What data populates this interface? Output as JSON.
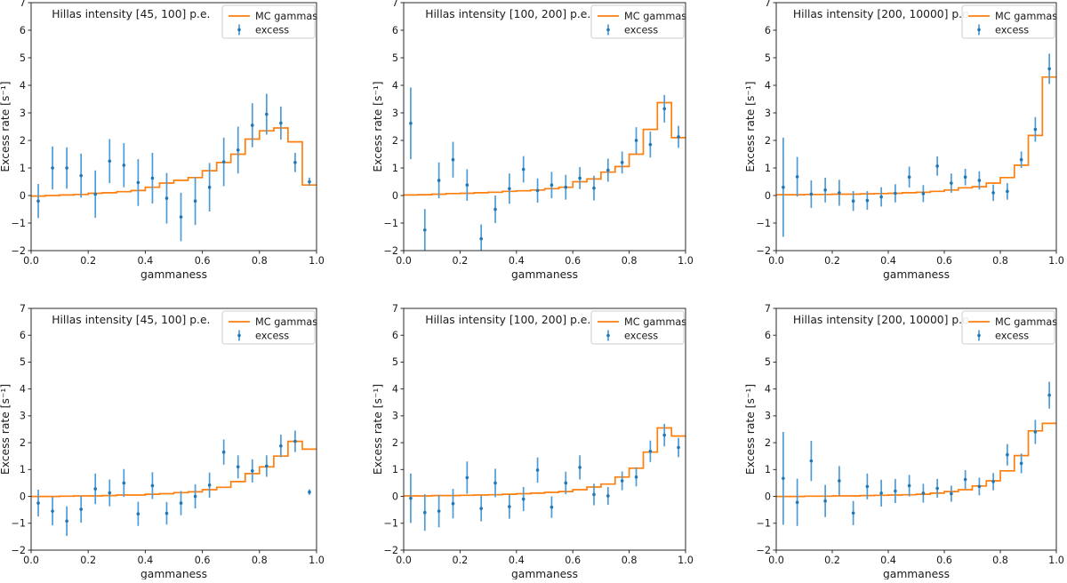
{
  "figure": {
    "background": "#ffffff",
    "xlabel": "gammaness",
    "ylabel": "Excess rate [s⁻¹]",
    "xlim": [
      0.0,
      1.0
    ],
    "ylim": [
      -2,
      7
    ],
    "xticks": [
      0.0,
      0.2,
      0.4,
      0.6,
      0.8,
      1.0
    ],
    "yticks": [
      -2,
      -1,
      0,
      1,
      2,
      3,
      4,
      5,
      6,
      7
    ],
    "legend": {
      "mc_label": "MC gammas",
      "excess_label": "excess",
      "position": "upper right"
    },
    "colors": {
      "mc_line": "#ff7f0e",
      "excess_marker": "#1f77b4",
      "excess_bar": "#4f9bd5",
      "axis": "#2b2b2b",
      "legend_border": "#cccccc"
    },
    "grid": "off"
  },
  "chart_data": [
    {
      "type": "line",
      "subtype": "step-histogram+errorbar-scatter",
      "row": 0,
      "col": 0,
      "title": "Hillas intensity [45, 100] p.e.",
      "xlabel": "gammaness",
      "ylabel": "Excess rate [s⁻¹]",
      "xlim": [
        0.0,
        1.0
      ],
      "ylim": [
        -2,
        7
      ],
      "bin_width": 0.05,
      "x": [
        0.025,
        0.075,
        0.125,
        0.175,
        0.225,
        0.275,
        0.325,
        0.375,
        0.425,
        0.475,
        0.525,
        0.575,
        0.625,
        0.675,
        0.725,
        0.775,
        0.825,
        0.875,
        0.925,
        0.975
      ],
      "series": [
        {
          "name": "MC gammas",
          "style": "step",
          "values": [
            -0.02,
            0.0,
            0.02,
            0.04,
            0.08,
            0.1,
            0.14,
            0.18,
            0.3,
            0.45,
            0.55,
            0.65,
            0.9,
            1.2,
            1.5,
            2.05,
            2.35,
            2.45,
            1.95,
            0.38
          ]
        },
        {
          "name": "excess",
          "style": "errorbar",
          "y": [
            -0.2,
            1.0,
            1.0,
            0.72,
            0.05,
            1.25,
            1.1,
            0.47,
            0.63,
            -0.1,
            -0.78,
            -0.2,
            0.3,
            1.22,
            1.65,
            2.55,
            2.95,
            2.63,
            1.2,
            0.5
          ],
          "yerr": [
            0.62,
            0.78,
            0.75,
            0.8,
            0.86,
            0.8,
            0.8,
            0.85,
            0.92,
            0.92,
            0.88,
            0.87,
            0.88,
            0.88,
            0.85,
            0.8,
            0.74,
            0.6,
            0.35,
            0.15
          ]
        }
      ]
    },
    {
      "type": "line",
      "subtype": "step-histogram+errorbar-scatter",
      "row": 0,
      "col": 1,
      "title": "Hillas intensity [100, 200] p.e.",
      "xlabel": "gammaness",
      "ylabel": "Excess rate [s⁻¹]",
      "xlim": [
        0.0,
        1.0
      ],
      "ylim": [
        -2,
        7
      ],
      "bin_width": 0.05,
      "x": [
        0.025,
        0.075,
        0.125,
        0.175,
        0.225,
        0.275,
        0.325,
        0.375,
        0.425,
        0.475,
        0.525,
        0.575,
        0.625,
        0.675,
        0.725,
        0.775,
        0.825,
        0.875,
        0.925,
        0.975
      ],
      "series": [
        {
          "name": "MC gammas",
          "style": "step",
          "values": [
            0.02,
            0.03,
            0.05,
            0.07,
            0.08,
            0.1,
            0.12,
            0.15,
            0.17,
            0.2,
            0.25,
            0.3,
            0.5,
            0.6,
            0.85,
            1.05,
            1.5,
            2.4,
            3.37,
            2.1
          ]
        },
        {
          "name": "excess",
          "style": "errorbar",
          "y": [
            2.62,
            -1.25,
            0.55,
            1.3,
            0.38,
            -1.57,
            -0.5,
            0.25,
            0.95,
            0.18,
            0.38,
            0.3,
            0.63,
            0.27,
            0.92,
            1.2,
            2.0,
            1.85,
            3.15,
            2.13
          ],
          "yerr": [
            1.3,
            0.76,
            0.65,
            0.65,
            0.57,
            0.52,
            0.5,
            0.55,
            0.48,
            0.44,
            0.48,
            0.45,
            0.4,
            0.45,
            0.42,
            0.4,
            0.48,
            0.47,
            0.5,
            0.4
          ]
        }
      ]
    },
    {
      "type": "line",
      "subtype": "step-histogram+errorbar-scatter",
      "row": 0,
      "col": 2,
      "title": "Hillas intensity [200, 10000] p.e.",
      "xlabel": "gammaness",
      "ylabel": "Excess rate [s⁻¹]",
      "xlim": [
        0.0,
        1.0
      ],
      "ylim": [
        -2,
        7
      ],
      "bin_width": 0.05,
      "x": [
        0.025,
        0.075,
        0.125,
        0.175,
        0.225,
        0.275,
        0.325,
        0.375,
        0.425,
        0.475,
        0.525,
        0.575,
        0.625,
        0.675,
        0.725,
        0.775,
        0.825,
        0.875,
        0.925,
        0.975
      ],
      "series": [
        {
          "name": "MC gammas",
          "style": "step",
          "values": [
            0.03,
            0.03,
            0.04,
            0.04,
            0.05,
            0.05,
            0.06,
            0.07,
            0.08,
            0.1,
            0.12,
            0.15,
            0.2,
            0.28,
            0.32,
            0.45,
            0.65,
            1.1,
            2.18,
            4.3
          ]
        },
        {
          "name": "excess",
          "style": "errorbar",
          "y": [
            0.3,
            0.68,
            0.05,
            0.2,
            0.1,
            -0.2,
            -0.18,
            -0.05,
            0.08,
            0.67,
            0.07,
            1.07,
            0.45,
            0.67,
            0.55,
            0.1,
            0.15,
            1.3,
            2.4,
            4.6
          ],
          "yerr": [
            1.8,
            0.72,
            0.5,
            0.45,
            0.47,
            0.36,
            0.34,
            0.35,
            0.33,
            0.38,
            0.31,
            0.35,
            0.35,
            0.3,
            0.33,
            0.3,
            0.3,
            0.3,
            0.45,
            0.55
          ]
        }
      ]
    },
    {
      "type": "line",
      "subtype": "step-histogram+errorbar-scatter",
      "row": 1,
      "col": 0,
      "title": "Hillas intensity [45, 100] p.e.",
      "xlabel": "gammaness",
      "ylabel": "Excess rate [s⁻¹]",
      "xlim": [
        0.0,
        1.0
      ],
      "ylim": [
        -2,
        7
      ],
      "bin_width": 0.05,
      "x": [
        0.025,
        0.075,
        0.125,
        0.175,
        0.225,
        0.275,
        0.325,
        0.375,
        0.425,
        0.475,
        0.525,
        0.575,
        0.625,
        0.675,
        0.725,
        0.775,
        0.825,
        0.875,
        0.925,
        0.975
      ],
      "series": [
        {
          "name": "MC gammas",
          "style": "step",
          "values": [
            0.0,
            0.0,
            0.01,
            0.02,
            0.02,
            0.03,
            0.05,
            0.05,
            0.08,
            0.1,
            0.14,
            0.17,
            0.25,
            0.34,
            0.55,
            0.85,
            1.1,
            1.5,
            2.05,
            1.76
          ]
        },
        {
          "name": "excess",
          "style": "errorbar",
          "y": [
            -0.25,
            -0.55,
            -0.92,
            -0.48,
            0.28,
            0.13,
            0.5,
            -0.65,
            0.4,
            -0.63,
            -0.25,
            0.0,
            0.42,
            1.65,
            1.1,
            0.95,
            1.13,
            1.88,
            2.05,
            0.16
          ],
          "yerr": [
            0.5,
            0.53,
            0.55,
            0.5,
            0.57,
            0.5,
            0.52,
            0.45,
            0.5,
            0.42,
            0.45,
            0.45,
            0.47,
            0.47,
            0.43,
            0.43,
            0.4,
            0.42,
            0.4,
            0.1
          ]
        }
      ]
    },
    {
      "type": "line",
      "subtype": "step-histogram+errorbar-scatter",
      "row": 1,
      "col": 1,
      "title": "Hillas intensity [100, 200] p.e.",
      "xlabel": "gammaness",
      "ylabel": "Excess rate [s⁻¹]",
      "xlim": [
        0.0,
        1.0
      ],
      "ylim": [
        -2,
        7
      ],
      "bin_width": 0.05,
      "x": [
        0.025,
        0.075,
        0.125,
        0.175,
        0.225,
        0.275,
        0.325,
        0.375,
        0.425,
        0.475,
        0.525,
        0.575,
        0.625,
        0.675,
        0.725,
        0.775,
        0.825,
        0.875,
        0.925,
        0.975
      ],
      "series": [
        {
          "name": "MC gammas",
          "style": "step",
          "values": [
            0.02,
            0.02,
            0.03,
            0.03,
            0.04,
            0.05,
            0.06,
            0.08,
            0.1,
            0.12,
            0.15,
            0.18,
            0.25,
            0.35,
            0.46,
            0.72,
            1.05,
            1.65,
            2.55,
            2.25
          ]
        },
        {
          "name": "excess",
          "style": "errorbar",
          "y": [
            -0.07,
            -0.6,
            -0.55,
            -0.27,
            0.7,
            -0.45,
            0.5,
            -0.38,
            -0.1,
            0.98,
            -0.4,
            0.5,
            1.08,
            0.07,
            0.02,
            0.58,
            0.72,
            1.68,
            2.28,
            1.82
          ],
          "yerr": [
            0.92,
            0.68,
            0.6,
            0.55,
            0.6,
            0.48,
            0.53,
            0.45,
            0.45,
            0.47,
            0.4,
            0.42,
            0.45,
            0.4,
            0.33,
            0.35,
            0.35,
            0.4,
            0.42,
            0.36
          ]
        }
      ]
    },
    {
      "type": "line",
      "subtype": "step-histogram+errorbar-scatter",
      "row": 1,
      "col": 2,
      "title": "Hillas intensity [200, 10000] p.e.",
      "xlabel": "gammaness",
      "ylabel": "Excess rate [s⁻¹]",
      "xlim": [
        0.0,
        1.0
      ],
      "ylim": [
        -2,
        7
      ],
      "bin_width": 0.05,
      "x": [
        0.025,
        0.075,
        0.125,
        0.175,
        0.225,
        0.275,
        0.325,
        0.375,
        0.425,
        0.475,
        0.525,
        0.575,
        0.625,
        0.675,
        0.725,
        0.775,
        0.825,
        0.875,
        0.925,
        0.975
      ],
      "series": [
        {
          "name": "MC gammas",
          "style": "step",
          "values": [
            0.0,
            0.0,
            0.01,
            0.01,
            0.02,
            0.02,
            0.03,
            0.04,
            0.05,
            0.06,
            0.08,
            0.12,
            0.18,
            0.25,
            0.39,
            0.58,
            0.95,
            1.52,
            2.44,
            2.72
          ]
        },
        {
          "name": "excess",
          "style": "errorbar",
          "y": [
            0.67,
            -0.22,
            1.32,
            -0.17,
            0.58,
            -0.62,
            0.37,
            0.12,
            0.2,
            0.4,
            0.12,
            0.3,
            0.1,
            0.63,
            0.37,
            0.55,
            1.55,
            1.23,
            2.4,
            3.77
          ],
          "yerr": [
            1.73,
            0.88,
            0.75,
            0.6,
            0.55,
            0.45,
            0.48,
            0.5,
            0.45,
            0.4,
            0.35,
            0.35,
            0.3,
            0.35,
            0.33,
            0.32,
            0.4,
            0.37,
            0.45,
            0.5
          ]
        }
      ]
    }
  ]
}
